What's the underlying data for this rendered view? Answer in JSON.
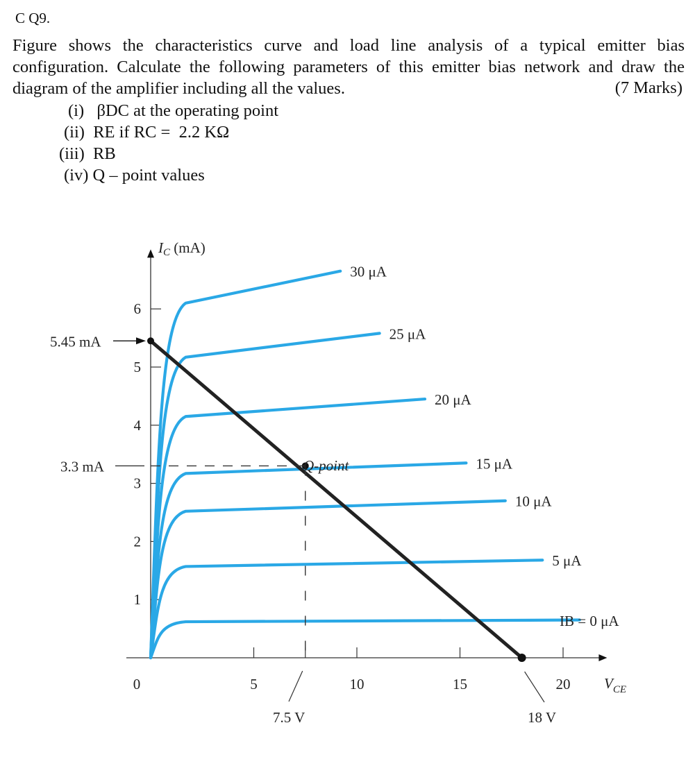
{
  "question": {
    "number": "C Q9.",
    "text": "Figure shows the characteristics curve and load line analysis of a typical emitter bias configuration. Calculate the following parameters of this emitter bias network and draw the diagram of the amplifier including all the values.",
    "marks": "(7 Marks)",
    "parts": [
      {
        "num": "(i)",
        "text": "βDC at the operating point"
      },
      {
        "num": "(ii)",
        "text": "RE if RC =  2.2 KΩ"
      },
      {
        "num": "(iii)",
        "text": "RB"
      },
      {
        "num": "(iv)",
        "text": "Q – point values"
      }
    ]
  },
  "chart_data": {
    "type": "line",
    "ylabel": "IC (mA)",
    "xlabel": "VCE",
    "xlim": [
      0,
      22
    ],
    "ylim": [
      0,
      7
    ],
    "x_ticks": [
      "0",
      "5",
      "10",
      "15",
      "20"
    ],
    "y_ticks": [
      "1",
      "2",
      "3",
      "4",
      "5",
      "6"
    ],
    "curve_color": "#2aa8e6",
    "load_line_color": "#222222",
    "series": [
      {
        "name": "IB = 0 μA",
        "knee_y": 0.62,
        "end_x": 20.8,
        "end_y": 0.65
      },
      {
        "name": "5 μA",
        "knee_y": 1.57,
        "end_x": 19.0,
        "end_y": 1.68
      },
      {
        "name": "10 μA",
        "knee_y": 2.52,
        "end_x": 17.2,
        "end_y": 2.7
      },
      {
        "name": "15 μA",
        "knee_y": 3.17,
        "end_x": 15.3,
        "end_y": 3.35
      },
      {
        "name": "20 μA",
        "knee_y": 4.15,
        "end_x": 13.3,
        "end_y": 4.45
      },
      {
        "name": "25 μA",
        "knee_y": 5.17,
        "end_x": 11.1,
        "end_y": 5.58
      },
      {
        "name": "30 μA",
        "knee_y": 6.1,
        "end_x": 9.2,
        "end_y": 6.65
      }
    ],
    "load_line": {
      "x": [
        0,
        18
      ],
      "y": [
        5.45,
        0
      ]
    },
    "annotations": {
      "ic_sat": "5.45 mA",
      "ic_q": "3.3 mA",
      "vce_q": "7.5 V",
      "vce_cutoff": "18 V",
      "q_point": "Q-point"
    },
    "q_point": {
      "x": 7.5,
      "y": 3.3
    }
  }
}
